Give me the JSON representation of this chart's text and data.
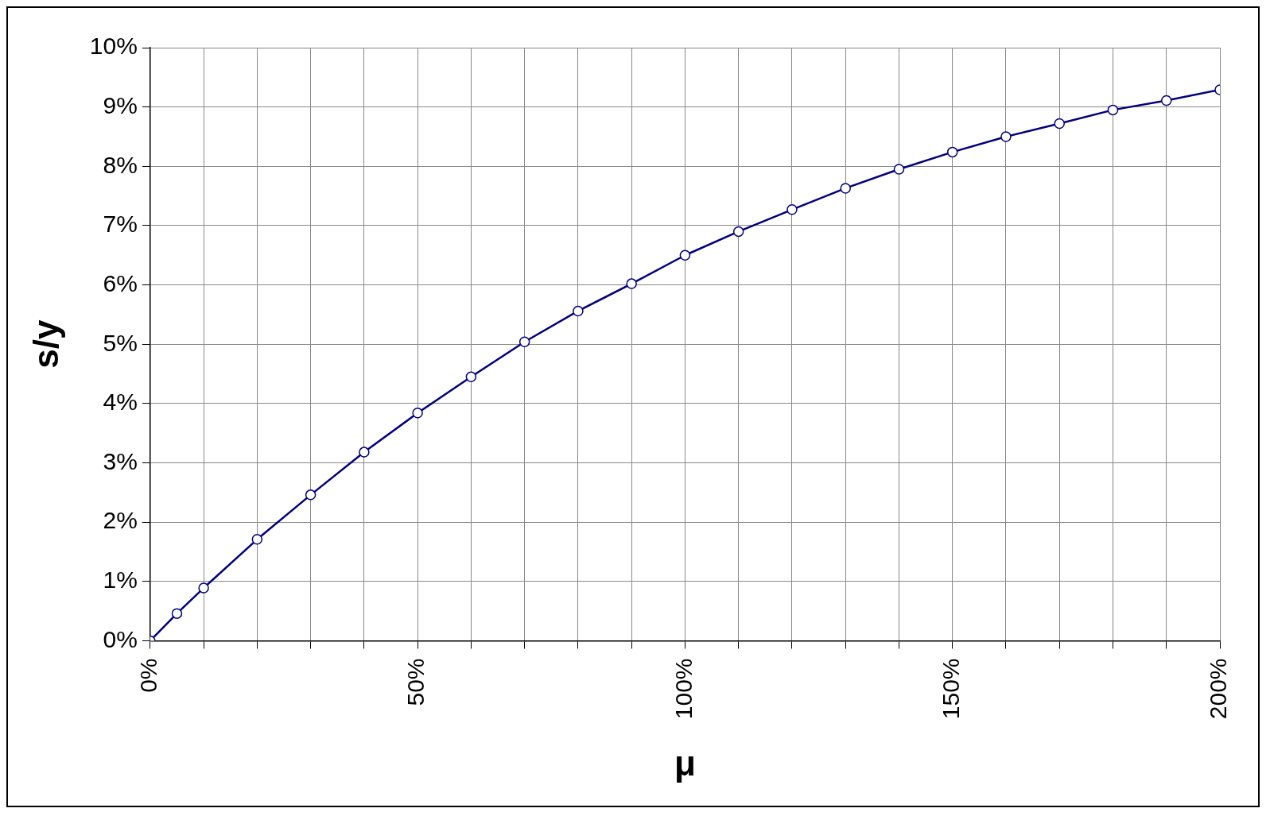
{
  "chart_data": {
    "type": "line",
    "xlabel": "μ",
    "ylabel": "s/y",
    "x": [
      0,
      5,
      10,
      20,
      30,
      40,
      50,
      60,
      70,
      80,
      90,
      100,
      110,
      120,
      130,
      140,
      150,
      160,
      170,
      180,
      190,
      200
    ],
    "series": [
      {
        "color": "#000080",
        "values": [
          0.0,
          0.46,
          0.89,
          1.71,
          2.46,
          3.18,
          3.84,
          4.45,
          5.04,
          5.56,
          6.02,
          6.5,
          6.9,
          7.27,
          7.63,
          7.95,
          8.24,
          8.5,
          8.72,
          8.95,
          9.11,
          9.29
        ]
      }
    ],
    "xlim": [
      0,
      200
    ],
    "xticks": [
      {
        "value": 0,
        "label": "0%"
      },
      {
        "value": 10,
        "label": null
      },
      {
        "value": 20,
        "label": null
      },
      {
        "value": 30,
        "label": null
      },
      {
        "value": 40,
        "label": null
      },
      {
        "value": 50,
        "label": "50%"
      },
      {
        "value": 60,
        "label": null
      },
      {
        "value": 70,
        "label": null
      },
      {
        "value": 80,
        "label": null
      },
      {
        "value": 90,
        "label": null
      },
      {
        "value": 100,
        "label": "100%"
      },
      {
        "value": 110,
        "label": null
      },
      {
        "value": 120,
        "label": null
      },
      {
        "value": 130,
        "label": null
      },
      {
        "value": 140,
        "label": null
      },
      {
        "value": 150,
        "label": "150%"
      },
      {
        "value": 160,
        "label": null
      },
      {
        "value": 170,
        "label": null
      },
      {
        "value": 180,
        "label": null
      },
      {
        "value": 190,
        "label": null
      },
      {
        "value": 200,
        "label": "200%"
      }
    ],
    "ylim": [
      0,
      10
    ],
    "yticks": [
      {
        "value": 0,
        "label": "0%"
      },
      {
        "value": 1,
        "label": "1%"
      },
      {
        "value": 2,
        "label": "2%"
      },
      {
        "value": 3,
        "label": "3%"
      },
      {
        "value": 4,
        "label": "4%"
      },
      {
        "value": 5,
        "label": "5%"
      },
      {
        "value": 6,
        "label": "6%"
      },
      {
        "value": 7,
        "label": "7%"
      },
      {
        "value": 8,
        "label": "8%"
      },
      {
        "value": 9,
        "label": "9%"
      },
      {
        "value": 10,
        "label": "10%"
      }
    ],
    "grid": true,
    "marker": "circle",
    "line_style": "solid",
    "legend": false
  }
}
